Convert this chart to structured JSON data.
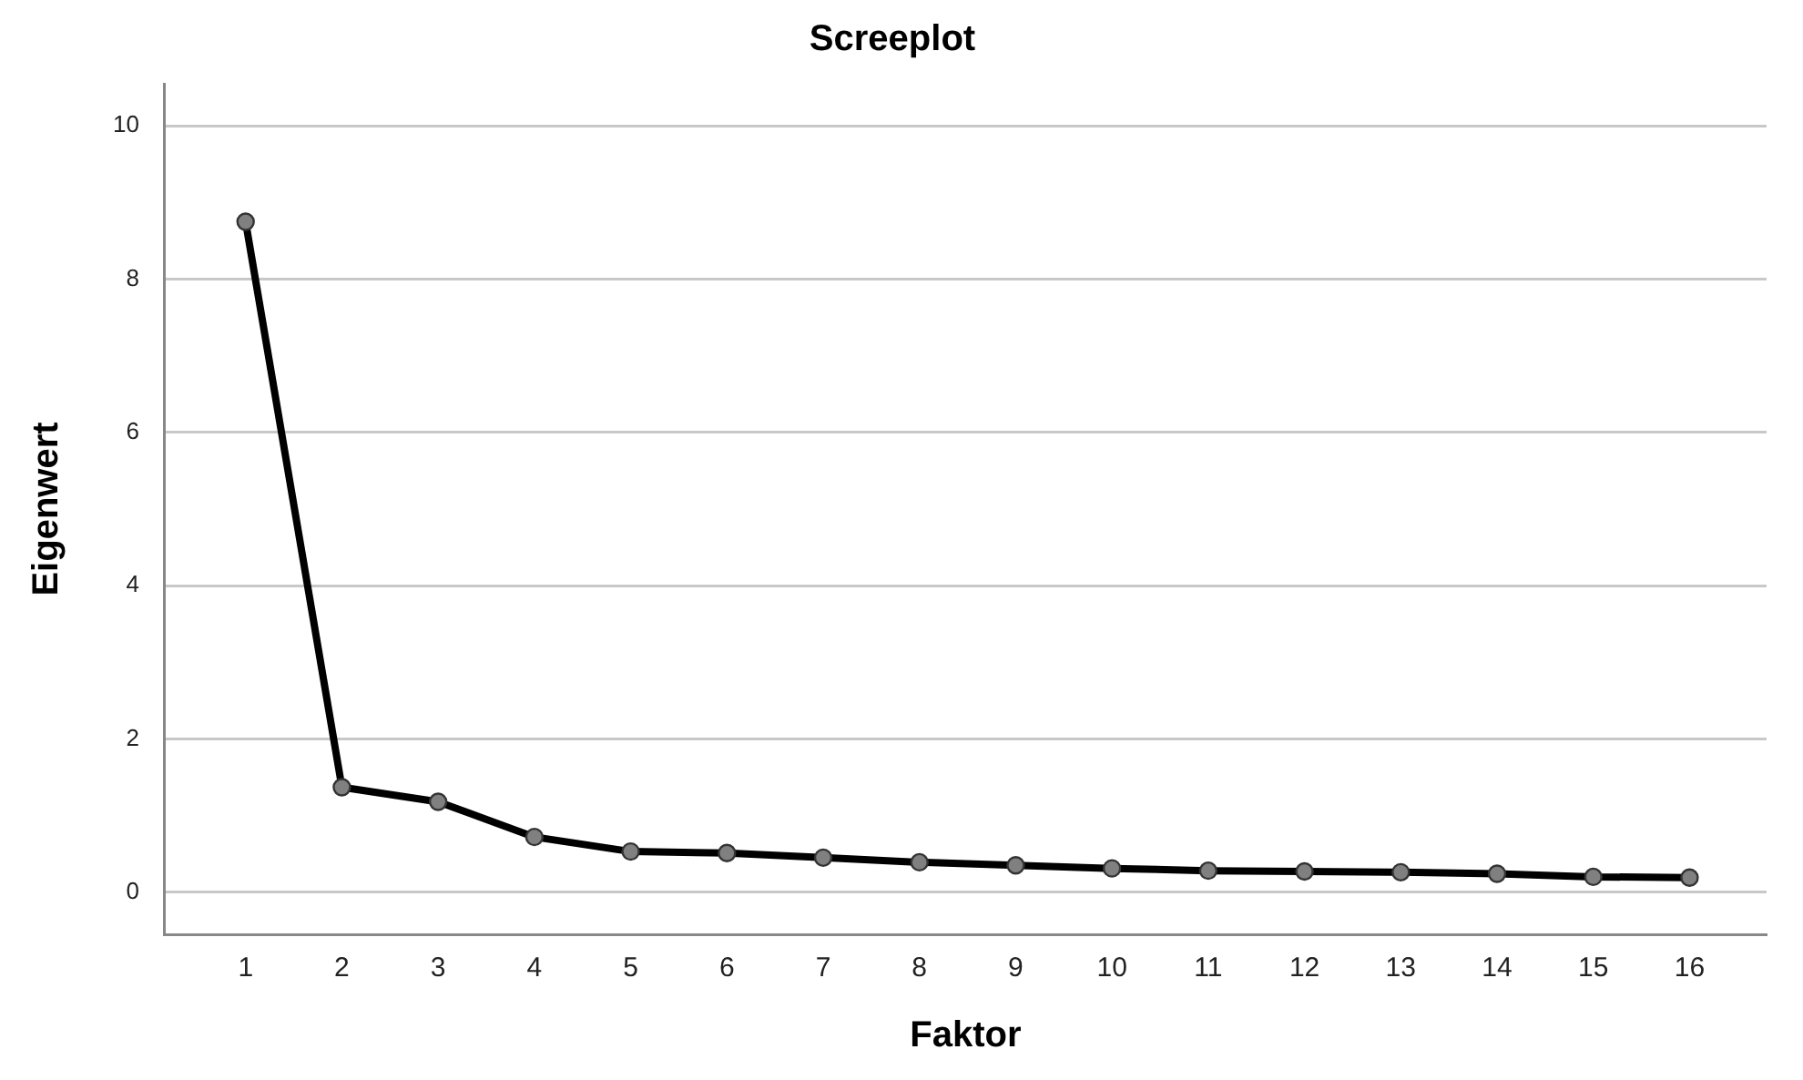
{
  "chart_data": {
    "type": "line",
    "title": "Screeplot",
    "xlabel": "Faktor",
    "ylabel": "Eigenwert",
    "x": [
      1,
      2,
      3,
      4,
      5,
      6,
      7,
      8,
      9,
      10,
      11,
      12,
      13,
      14,
      15,
      16
    ],
    "series": [
      {
        "color": "#000000",
        "values": [
          8.75,
          1.37,
          1.18,
          0.72,
          0.53,
          0.51,
          0.45,
          0.39,
          0.35,
          0.31,
          0.28,
          0.27,
          0.26,
          0.24,
          0.2,
          0.19
        ]
      }
    ],
    "xlim": [
      0.16,
      16.8
    ],
    "xticks": [
      1,
      2,
      3,
      4,
      5,
      6,
      7,
      8,
      9,
      10,
      11,
      12,
      13,
      14,
      15,
      16
    ],
    "ylim": [
      -0.55,
      10.55
    ],
    "yticks": [
      0,
      2,
      4,
      6,
      8,
      10
    ],
    "grid": "y",
    "legend": false,
    "marker": "circle",
    "line_style": "solid"
  }
}
